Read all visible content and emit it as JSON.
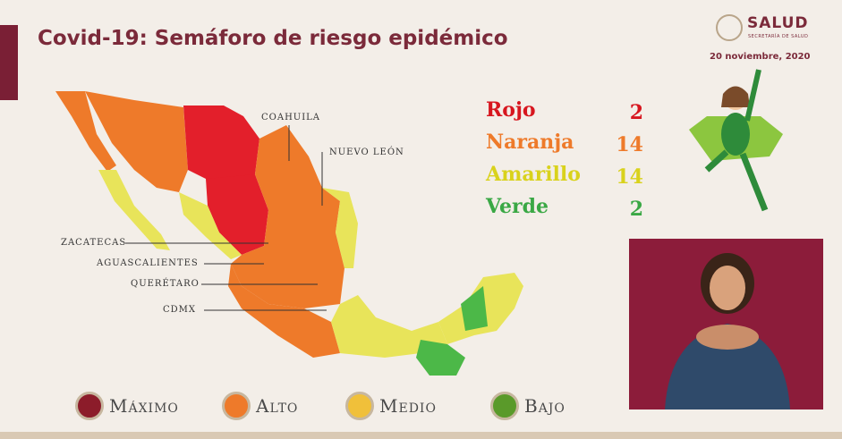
{
  "header": {
    "title": "Covid-19: Semáforo de riesgo epidémico",
    "logo": "SALUD",
    "logo_sub": "SECRETARÍA DE SALUD",
    "date": "20 noviembre, 2020"
  },
  "map_labels": [
    "COAHUILA",
    "NUEVO LEÓN",
    "ZACATECAS",
    "AGUASCALIENTES",
    "QUERÉTARO",
    "CDMX"
  ],
  "counts": [
    {
      "label": "Rojo",
      "value": 2
    },
    {
      "label": "Naranja",
      "value": 14
    },
    {
      "label": "Amarillo",
      "value": 14
    },
    {
      "label": "Verde",
      "value": 2
    }
  ],
  "legend": [
    "Máximo",
    "Alto",
    "Medio",
    "Bajo"
  ]
}
